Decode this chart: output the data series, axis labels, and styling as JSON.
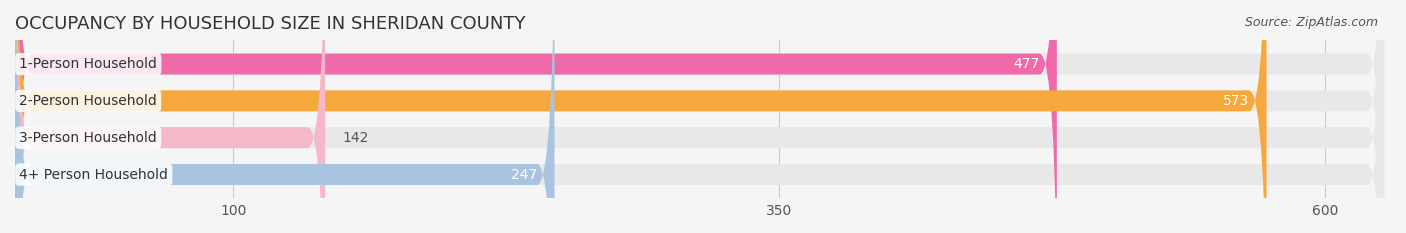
{
  "title": "OCCUPANCY BY HOUSEHOLD SIZE IN SHERIDAN COUNTY",
  "source": "Source: ZipAtlas.com",
  "categories": [
    "1-Person Household",
    "2-Person Household",
    "3-Person Household",
    "4+ Person Household"
  ],
  "values": [
    477,
    573,
    142,
    247
  ],
  "bar_colors": [
    "#f06aaa",
    "#f5a83c",
    "#f4b8c8",
    "#a8c4e0"
  ],
  "bar_bg_color": "#e8e8e8",
  "label_bg_color": "#ffffff",
  "xticks": [
    100,
    350,
    600
  ],
  "xlim": [
    0,
    630
  ],
  "ylim": [
    -0.6,
    3.6
  ],
  "value_label_color_inside": "#ffffff",
  "value_label_color_outside": "#555555",
  "bar_height": 0.55,
  "background_color": "#f5f5f5",
  "title_fontsize": 13,
  "label_fontsize": 10,
  "value_fontsize": 10,
  "tick_fontsize": 10
}
